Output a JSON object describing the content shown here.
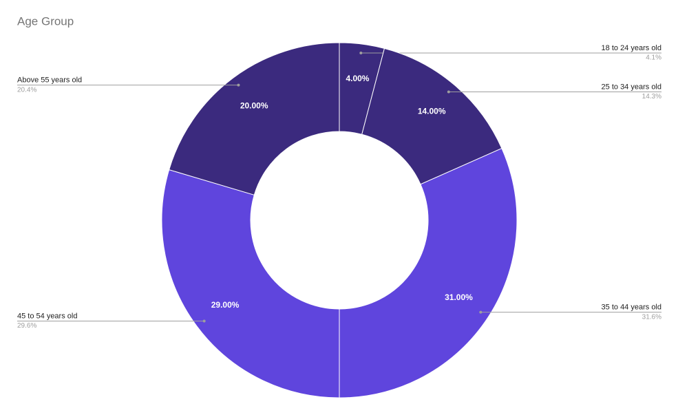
{
  "chart_data": {
    "type": "donut",
    "title": "Age Group",
    "categories": [
      "18 to 24 years old",
      "25 to 34 years old",
      "35 to 44 years old",
      "45 to 54 years old",
      "Above 55 years old"
    ],
    "values": [
      4,
      14,
      31,
      29,
      20
    ],
    "value_labels": [
      "4.00%",
      "14.00%",
      "31.00%",
      "29.00%",
      "20.00%"
    ],
    "share_labels": [
      "4.1%",
      "14.3%",
      "31.6%",
      "29.6%",
      "20.4%"
    ],
    "colors": [
      "#3b2a7e",
      "#3b2a7e",
      "#5f45dd",
      "#5f45dd",
      "#3b2a7e"
    ]
  }
}
